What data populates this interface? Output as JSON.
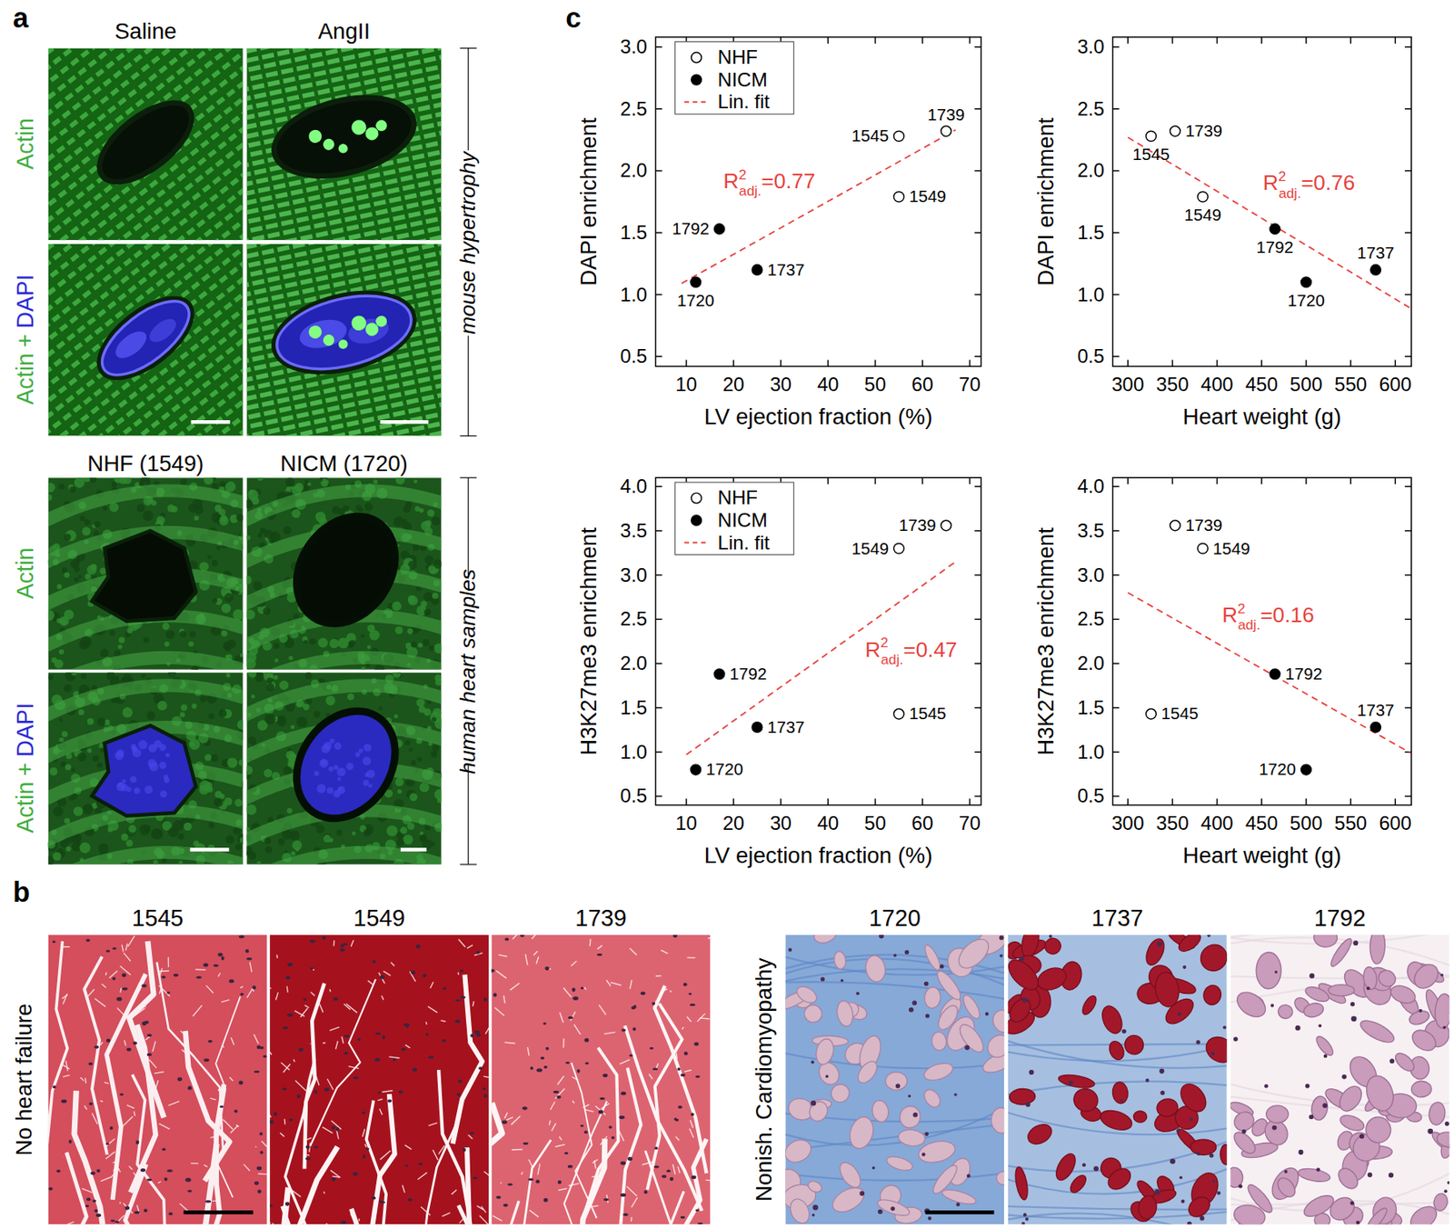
{
  "panel_labels": [
    "a",
    "b",
    "c"
  ],
  "panel_a": {
    "mouse": {
      "columns": [
        "Saline",
        "AngII"
      ],
      "side_label": "mouse hypertrophy"
    },
    "human": {
      "columns": [
        "NHF (1549)",
        "NICM (1720)"
      ],
      "side_label": "human heart samples"
    },
    "row_labels": {
      "actin": "Actin",
      "plus": "+",
      "dapi": "DAPI"
    }
  },
  "panel_b": {
    "groups": [
      {
        "label": "No heart failure",
        "samples": [
          "1545",
          "1549",
          "1739"
        ]
      },
      {
        "label": "Nonish. Cardiomyopathy",
        "samples": [
          "1720",
          "1737",
          "1792"
        ]
      }
    ]
  },
  "chart_data": [
    {
      "type": "scatter",
      "x_label": "LV ejection fraction (%)",
      "y_label": "DAPI enrichment",
      "xlim": [
        3.5,
        72.4
      ],
      "xticks": [
        10,
        20,
        30,
        40,
        50,
        60,
        70
      ],
      "ylim": [
        0.42,
        3.08
      ],
      "yticks": [
        0.5,
        {
          "value": 1,
          "label": "1.0"
        },
        1.5,
        {
          "value": 2,
          "label": "2.0"
        },
        2.5,
        {
          "value": 3,
          "label": "3.0"
        }
      ],
      "legend": "upper left",
      "series": [
        {
          "name": "NHF",
          "marker": "open circle",
          "color": "#000000",
          "x": [
            55,
            55,
            65
          ],
          "values": [
            2.28,
            1.79,
            2.32
          ],
          "labels": [
            "1545",
            "1549",
            "1739"
          ]
        },
        {
          "name": "NICM",
          "marker": "filled circle",
          "color": "#000000",
          "x": [
            12,
            25,
            17
          ],
          "values": [
            1.1,
            1.2,
            1.53
          ],
          "labels": [
            "1720",
            "1737",
            "1792"
          ]
        },
        {
          "name": "Lin. fit",
          "type": "line",
          "line_style": "dashed",
          "color": "#e8413c",
          "x": [
            9,
            67
          ],
          "values": [
            1.09,
            2.33
          ]
        }
      ],
      "annotation": {
        "text": "R",
        "sup": "2",
        "sub": "adj.",
        "suffix": "=0.77"
      }
    },
    {
      "type": "scatter",
      "x_label": "Heart weight (g)",
      "y_label": "DAPI enrichment",
      "xlim": [
        283,
        618
      ],
      "xticks": [
        300,
        350,
        400,
        450,
        500,
        550,
        600
      ],
      "ylim": [
        0.42,
        3.08
      ],
      "yticks": [
        0.5,
        {
          "value": 1,
          "label": "1.0"
        },
        1.5,
        {
          "value": 2,
          "label": "2.0"
        },
        2.5,
        {
          "value": 3,
          "label": "3.0"
        }
      ],
      "legend": false,
      "series": [
        {
          "name": "NHF",
          "marker": "open circle",
          "color": "#000000",
          "x": [
            326,
            384,
            353
          ],
          "values": [
            2.28,
            1.79,
            2.32
          ],
          "labels": [
            "1545",
            "1549",
            "1739"
          ]
        },
        {
          "name": "NICM",
          "marker": "filled circle",
          "color": "#000000",
          "x": [
            500,
            578,
            465
          ],
          "values": [
            1.1,
            1.2,
            1.53
          ],
          "labels": [
            "1720",
            "1737",
            "1792"
          ]
        },
        {
          "name": "Lin. fit",
          "type": "line",
          "line_style": "dashed",
          "color": "#e8413c",
          "x": [
            300,
            617
          ],
          "values": [
            2.27,
            0.89
          ]
        }
      ],
      "annotation": {
        "text": "R",
        "sup": "2",
        "sub": "adj.",
        "suffix": "=0.76"
      }
    },
    {
      "type": "scatter",
      "x_label": "LV ejection fraction (%)",
      "y_label": "H3K27me3 enrichment",
      "xlim": [
        3.5,
        72.4
      ],
      "xticks": [
        10,
        20,
        30,
        40,
        50,
        60,
        70
      ],
      "ylim": [
        0.4,
        4.1
      ],
      "yticks": [
        0.5,
        {
          "value": 1,
          "label": "1.0"
        },
        1.5,
        {
          "value": 2,
          "label": "2.0"
        },
        2.5,
        {
          "value": 3,
          "label": "3.0"
        },
        3.5,
        {
          "value": 4,
          "label": "4.0"
        }
      ],
      "legend": "upper left",
      "series": [
        {
          "name": "NHF",
          "marker": "open circle",
          "color": "#000000",
          "x": [
            55,
            55,
            65
          ],
          "values": [
            1.43,
            3.3,
            3.56
          ],
          "labels": [
            "1545",
            "1549",
            "1739"
          ]
        },
        {
          "name": "NICM",
          "marker": "filled circle",
          "color": "#000000",
          "x": [
            12,
            25,
            17
          ],
          "values": [
            0.8,
            1.28,
            1.88
          ],
          "labels": [
            "1720",
            "1737",
            "1792"
          ]
        },
        {
          "name": "Lin. fit",
          "type": "line",
          "line_style": "dashed",
          "color": "#e8413c",
          "x": [
            10,
            67
          ],
          "values": [
            0.97,
            3.15
          ]
        }
      ],
      "annotation": {
        "text": "R",
        "sup": "2",
        "sub": "adj.",
        "suffix": "=0.47"
      }
    },
    {
      "type": "scatter",
      "x_label": "Heart weight (g)",
      "y_label": "H3K27me3 enrichment",
      "xlim": [
        283,
        618
      ],
      "xticks": [
        300,
        350,
        400,
        450,
        500,
        550,
        600
      ],
      "ylim": [
        0.4,
        4.1
      ],
      "yticks": [
        0.5,
        {
          "value": 1,
          "label": "1.0"
        },
        1.5,
        {
          "value": 2,
          "label": "2.0"
        },
        2.5,
        {
          "value": 3,
          "label": "3.0"
        },
        3.5,
        {
          "value": 4,
          "label": "4.0"
        }
      ],
      "legend": false,
      "series": [
        {
          "name": "NHF",
          "marker": "open circle",
          "color": "#000000",
          "x": [
            326,
            384,
            353
          ],
          "values": [
            1.43,
            3.3,
            3.56
          ],
          "labels": [
            "1545",
            "1549",
            "1739"
          ]
        },
        {
          "name": "NICM",
          "marker": "filled circle",
          "color": "#000000",
          "x": [
            500,
            578,
            465
          ],
          "values": [
            0.8,
            1.28,
            1.88
          ],
          "labels": [
            "1720",
            "1737",
            "1792"
          ]
        },
        {
          "name": "Lin. fit",
          "type": "line",
          "line_style": "dashed",
          "color": "#e8413c",
          "x": [
            300,
            617
          ],
          "values": [
            2.8,
            0.99
          ]
        }
      ],
      "annotation": {
        "text": "R",
        "sup": "2",
        "sub": "adj.",
        "suffix": "=0.16"
      }
    }
  ]
}
